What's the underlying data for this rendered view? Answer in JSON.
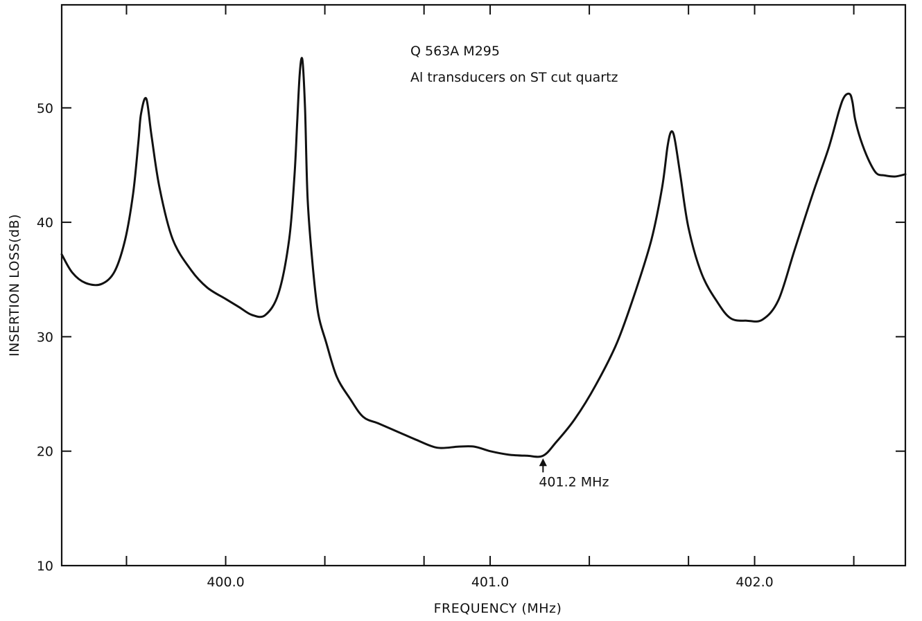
{
  "chart_data": {
    "type": "line",
    "title": "",
    "xlabel": "FREQUENCY (MHz)",
    "ylabel": "INSERTION LOSS(dB)",
    "xlim": [
      399.38,
      402.57
    ],
    "ylim": [
      10,
      59
    ],
    "xticks": [
      399.625,
      400.0,
      400.375,
      400.75,
      401.0,
      401.375,
      401.75,
      402.0,
      402.375
    ],
    "xtick_labels": [
      {
        "value": 400.0,
        "label": "400.0"
      },
      {
        "value": 401.0,
        "label": "401.0"
      },
      {
        "value": 402.0,
        "label": "402.0"
      }
    ],
    "yticks": [
      10,
      20,
      30,
      40,
      50
    ],
    "ytick_labels": [
      "10",
      "20",
      "30",
      "40",
      "50"
    ],
    "grid": false,
    "annotations": [
      {
        "text": "Q 563A   M295"
      },
      {
        "text": "Al transducers on ST cut quartz"
      },
      {
        "text": "401.2 MHz",
        "x": 401.2,
        "y": 19.6
      }
    ],
    "series": [
      {
        "x": [
          399.38,
          399.42,
          399.47,
          399.53,
          399.58,
          399.62,
          399.65,
          399.67,
          399.68,
          399.7,
          399.72,
          399.75,
          399.8,
          399.87,
          399.93,
          400.0,
          400.05,
          400.1,
          400.15,
          400.2,
          400.24,
          400.26,
          400.27,
          400.28,
          400.29,
          400.3,
          400.31,
          400.33,
          400.35,
          400.38,
          400.42,
          400.47,
          400.52,
          400.58,
          400.65,
          400.72,
          400.8,
          400.88,
          400.94,
          401.0,
          401.07,
          401.14,
          401.2,
          401.25,
          401.32,
          401.4,
          401.48,
          401.55,
          401.61,
          401.65,
          401.67,
          401.68,
          401.69,
          401.7,
          401.72,
          401.75,
          401.8,
          401.86,
          401.91,
          401.97,
          402.03,
          402.09,
          402.15,
          402.22,
          402.28,
          402.32,
          402.34,
          402.36,
          402.37,
          402.38,
          402.4,
          402.43,
          402.46,
          402.49,
          402.53,
          402.57
        ],
        "y": [
          37.2,
          35.6,
          34.7,
          34.6,
          35.7,
          38.5,
          42.5,
          47.0,
          49.5,
          50.8,
          47.5,
          43.0,
          38.5,
          35.8,
          34.3,
          33.3,
          32.6,
          31.9,
          31.9,
          33.8,
          38.5,
          44.0,
          48.5,
          53.0,
          54.2,
          50.0,
          42.0,
          36.0,
          32.0,
          29.5,
          26.5,
          24.6,
          23.0,
          22.4,
          21.7,
          21.0,
          20.3,
          20.4,
          20.4,
          20.0,
          19.7,
          19.6,
          19.6,
          20.8,
          22.8,
          25.8,
          29.5,
          34.0,
          38.5,
          43.0,
          46.5,
          47.7,
          47.9,
          47.0,
          44.0,
          39.5,
          35.5,
          33.0,
          31.6,
          31.4,
          31.5,
          33.2,
          37.5,
          42.5,
          46.5,
          49.8,
          51.0,
          51.2,
          50.5,
          49.0,
          47.3,
          45.5,
          44.3,
          44.1,
          44.0,
          44.2
        ]
      }
    ]
  }
}
